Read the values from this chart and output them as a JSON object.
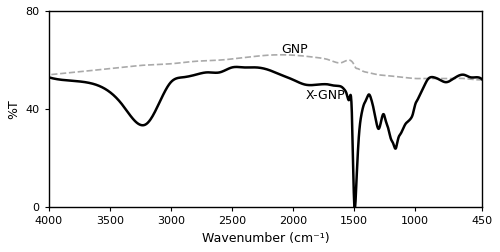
{
  "title": "",
  "xlabel": "Wavenumber (cm⁻¹)",
  "ylabel": "%T",
  "xlim": [
    4000,
    450
  ],
  "ylim": [
    0,
    80
  ],
  "yticks": [
    0,
    40,
    80
  ],
  "xticks": [
    4000,
    3500,
    3000,
    2500,
    2000,
    1500,
    1000,
    450
  ],
  "gnp_label": "GNP",
  "xgnp_label": "X-GNP",
  "background_color": "#ffffff",
  "gnp_color": "#aaaaaa",
  "xgnp_color": "#000000",
  "gnp_linewidth": 1.2,
  "xgnp_linewidth": 1.8,
  "gnp_linestyle": "--"
}
